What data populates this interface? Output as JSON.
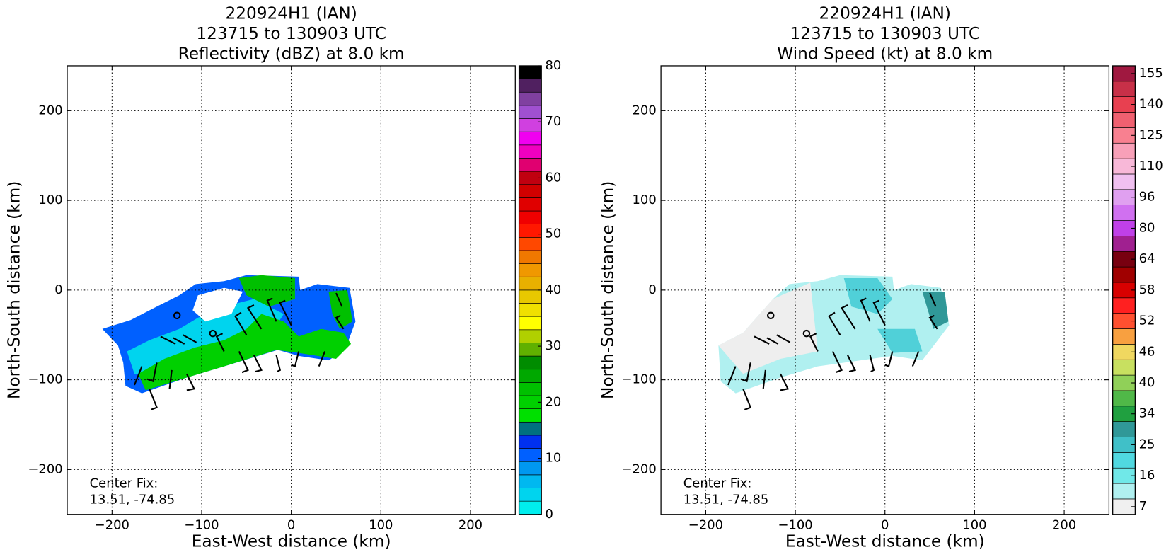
{
  "chart_data": [
    {
      "type": "radar",
      "title": [
        "220924H1 (IAN)",
        "123715 to 130903 UTC",
        "Reflectivity (dBZ) at 8.0 km"
      ],
      "xlabel": "East-West distance (km)",
      "ylabel": "North-South distance (km)",
      "xlim": [
        -250,
        250
      ],
      "ylim": [
        -250,
        250
      ],
      "xticks": [
        {
          "value": -200,
          "label": "−200"
        },
        {
          "value": -100,
          "label": "−100"
        },
        0,
        100,
        200
      ],
      "yticks": [
        {
          "value": -200,
          "label": "−200"
        },
        {
          "value": -100,
          "label": "−100"
        },
        0,
        100,
        200
      ],
      "grid": true,
      "annotation": [
        "Center Fix:",
        "13.51, -74.85"
      ],
      "colorbar": {
        "lim": [
          0,
          80
        ],
        "ticks": [
          0,
          10,
          20,
          30,
          40,
          50,
          60,
          70,
          80
        ],
        "colors": [
          "#00eeee",
          "#00d4ee",
          "#00b8f0",
          "#0098f0",
          "#0060ff",
          "#0030f0",
          "#007080",
          "#00e000",
          "#00d000",
          "#00c000",
          "#00a800",
          "#008c00",
          "#60b000",
          "#b0d000",
          "#ffff00",
          "#f0e000",
          "#e8c800",
          "#e8b000",
          "#f09800",
          "#f07800",
          "#ff4800",
          "#ff1800",
          "#f00000",
          "#e00000",
          "#d00000",
          "#c00010",
          "#e00070",
          "#f000c0",
          "#f000f0",
          "#d040e0",
          "#a050d0",
          "#8040a0",
          "#502060",
          "#000000"
        ]
      }
    },
    {
      "type": "radar",
      "title": [
        "220924H1 (IAN)",
        "123715 to 130903 UTC",
        "Wind Speed (kt) at 8.0 km"
      ],
      "xlabel": "East-West distance (km)",
      "ylabel": "North-South distance (km)",
      "xlim": [
        -250,
        250
      ],
      "ylim": [
        -250,
        250
      ],
      "xticks": [
        {
          "value": -200,
          "label": "−200"
        },
        {
          "value": -100,
          "label": "−100"
        },
        0,
        100,
        200
      ],
      "yticks": [
        {
          "value": -200,
          "label": "−200"
        },
        {
          "value": -100,
          "label": "−100"
        },
        0,
        100,
        200
      ],
      "grid": true,
      "annotation": [
        "Center Fix:",
        "13.51, -74.85"
      ],
      "colorbar": {
        "ticks": [
          7,
          16,
          25,
          34,
          40,
          46,
          52,
          58,
          64,
          80,
          96,
          110,
          125,
          140,
          155
        ],
        "colors": [
          "#f0f0f0",
          "#b0f0f0",
          "#70e8e8",
          "#50d8e0",
          "#40c0c8",
          "#309898",
          "#20a040",
          "#50b848",
          "#90d058",
          "#c8e060",
          "#f0d860",
          "#f8a040",
          "#ff5030",
          "#ff2020",
          "#d80000",
          "#a00000",
          "#780010",
          "#a02090",
          "#c040e8",
          "#d070f0",
          "#e0a0f0",
          "#f0c0f0",
          "#f8b8d8",
          "#f8a0b8",
          "#f88090",
          "#f06070",
          "#e84050",
          "#c83048",
          "#a01840"
        ]
      }
    }
  ]
}
